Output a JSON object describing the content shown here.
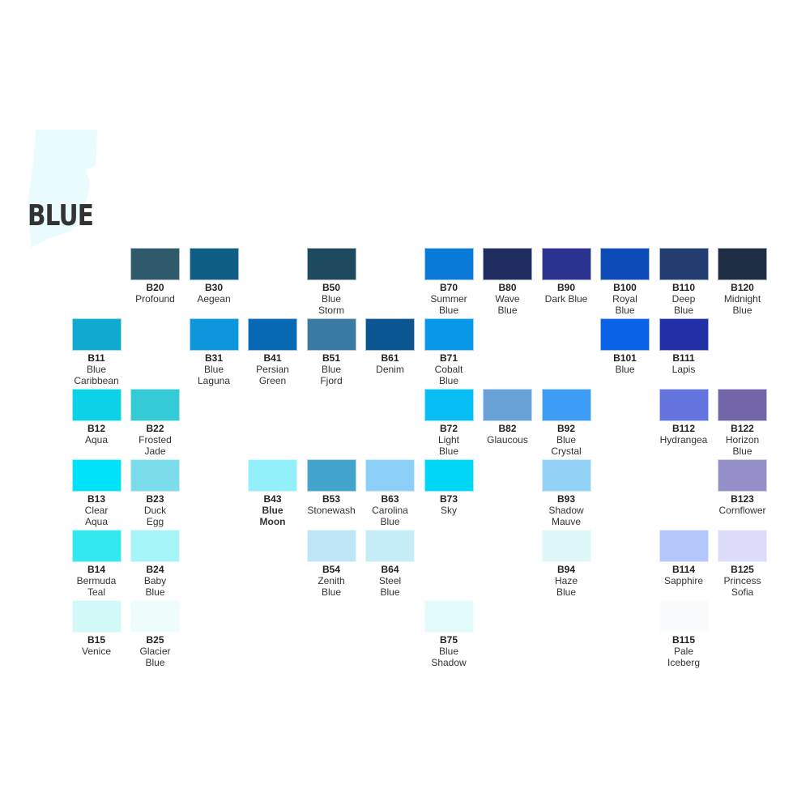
{
  "title": "BLUE",
  "swatches": [
    {
      "code": "B20",
      "name": [
        "Profound"
      ],
      "color": "#2f5a6c"
    },
    {
      "code": "B30",
      "name": [
        "Aegean"
      ],
      "color": "#0f5e86"
    },
    {
      "code": "B50",
      "name": [
        "Blue",
        "Storm"
      ],
      "color": "#1e4a60"
    },
    {
      "code": "B70",
      "name": [
        "Summer",
        "Blue"
      ],
      "color": "#0a7ad8"
    },
    {
      "code": "B80",
      "name": [
        "Wave",
        "Blue"
      ],
      "color": "#1f2d60"
    },
    {
      "code": "B90",
      "name": [
        "Dark Blue"
      ],
      "color": "#2a3490"
    },
    {
      "code": "B100",
      "name": [
        "Royal",
        "Blue"
      ],
      "color": "#0d4cb8"
    },
    {
      "code": "B110",
      "name": [
        "Deep",
        "Blue"
      ],
      "color": "#243d70"
    },
    {
      "code": "B120",
      "name": [
        "Midnight",
        "Blue"
      ],
      "color": "#1f2e45"
    },
    {
      "code": "B11",
      "name": [
        "Blue",
        "Caribbean"
      ],
      "color": "#10a9d0"
    },
    {
      "code": "B31",
      "name": [
        "Blue",
        "Laguna"
      ],
      "color": "#0e96dc"
    },
    {
      "code": "B41",
      "name": [
        "Persian",
        "Green"
      ],
      "color": "#0769b4"
    },
    {
      "code": "B51",
      "name": [
        "Blue",
        "Fjord"
      ],
      "color": "#3a7ba6"
    },
    {
      "code": "B61",
      "name": [
        "Denim"
      ],
      "color": "#0b5590"
    },
    {
      "code": "B71",
      "name": [
        "Cobalt",
        "Blue"
      ],
      "color": "#0a99e8"
    },
    {
      "code": "B101",
      "name": [
        "Blue"
      ],
      "color": "#0a62e6"
    },
    {
      "code": "B111",
      "name": [
        "Lapis"
      ],
      "color": "#2230a8"
    },
    {
      "code": "B12",
      "name": [
        "Aqua"
      ],
      "color": "#0bd2e6"
    },
    {
      "code": "B22",
      "name": [
        "Frosted",
        "Jade"
      ],
      "color": "#34cad6"
    },
    {
      "code": "B72",
      "name": [
        "Light",
        "Blue"
      ],
      "color": "#08bff5"
    },
    {
      "code": "B82",
      "name": [
        "Glaucous"
      ],
      "color": "#69a2d6"
    },
    {
      "code": "B92",
      "name": [
        "Blue",
        "Crystal"
      ],
      "color": "#3d9cf3"
    },
    {
      "code": "B112",
      "name": [
        "Hydrangea"
      ],
      "color": "#6474df"
    },
    {
      "code": "B122",
      "name": [
        "Horizon",
        "Blue"
      ],
      "color": "#7366a8"
    },
    {
      "code": "B13",
      "name": [
        "Clear",
        "Aqua"
      ],
      "color": "#00e2f8"
    },
    {
      "code": "B23",
      "name": [
        "Duck",
        "Egg"
      ],
      "color": "#7bdcec"
    },
    {
      "code": "B43",
      "name": [
        "Blue",
        "Moon"
      ],
      "color": "#92f0fa",
      "bold": true
    },
    {
      "code": "B53",
      "name": [
        "Stonewash"
      ],
      "color": "#42a4cc"
    },
    {
      "code": "B63",
      "name": [
        "Carolina",
        "Blue"
      ],
      "color": "#8cd0f8"
    },
    {
      "code": "B73",
      "name": [
        "Sky"
      ],
      "color": "#00d6f6"
    },
    {
      "code": "B93",
      "name": [
        "Shadow",
        "Mauve"
      ],
      "color": "#93d3f8"
    },
    {
      "code": "B123",
      "name": [
        "Cornflower"
      ],
      "color": "#958fc8"
    },
    {
      "code": "B14",
      "name": [
        "Bermuda",
        "Teal"
      ],
      "color": "#34e8f2"
    },
    {
      "code": "B24",
      "name": [
        "Baby",
        "Blue"
      ],
      "color": "#a4f4f8"
    },
    {
      "code": "B54",
      "name": [
        "Zenith",
        "Blue"
      ],
      "color": "#bfe6f6"
    },
    {
      "code": "B64",
      "name": [
        "Steel",
        "Blue"
      ],
      "color": "#c6ecf8"
    },
    {
      "code": "B94",
      "name": [
        "Haze",
        "Blue"
      ],
      "color": "#def8fa"
    },
    {
      "code": "B114",
      "name": [
        "Sapphire"
      ],
      "color": "#b4c8fb"
    },
    {
      "code": "B125",
      "name": [
        "Princess",
        "Sofia"
      ],
      "color": "#dcdcfa"
    },
    {
      "code": "B15",
      "name": [
        "Venice"
      ],
      "color": "#d3f8f8"
    },
    {
      "code": "B25",
      "name": [
        "Glacier",
        "Blue"
      ],
      "color": "#eefcfc"
    },
    {
      "code": "B75",
      "name": [
        "Blue",
        "Shadow"
      ],
      "color": "#e2fafa"
    },
    {
      "code": "B115",
      "name": [
        "Pale",
        "Iceberg"
      ],
      "color": "#f9fbfd"
    }
  ]
}
